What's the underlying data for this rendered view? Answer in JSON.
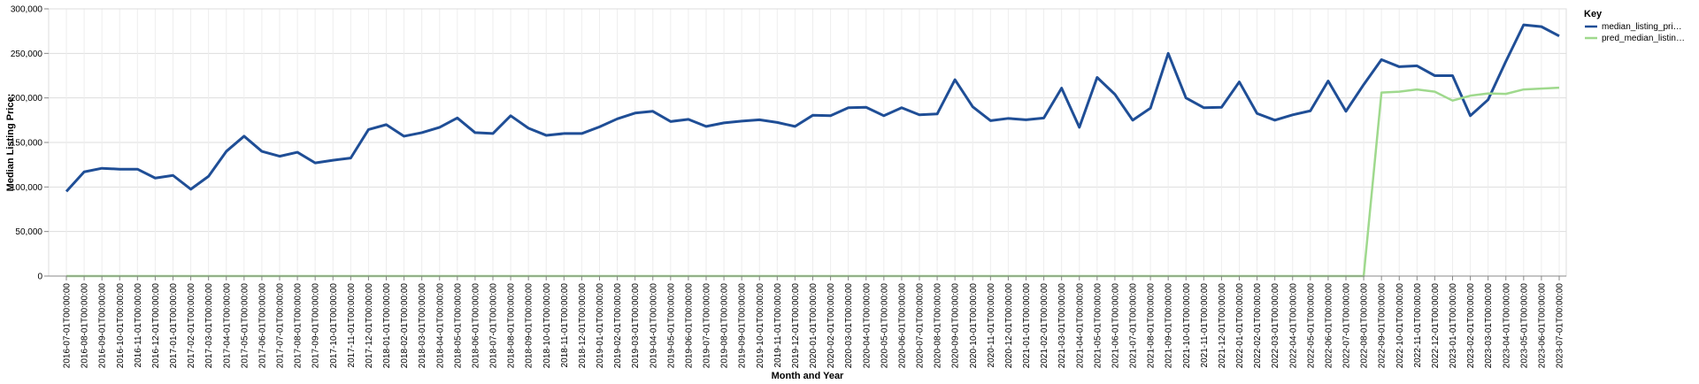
{
  "chart_data": {
    "type": "line",
    "xlabel": "Month and Year",
    "ylabel": "Median Listing Price:",
    "ylim": [
      0,
      300000
    ],
    "yticks": [
      "0",
      "50,000",
      "100,000",
      "150,000",
      "200,000",
      "250,000",
      "300,000"
    ],
    "grid": true,
    "legend": {
      "title": "Key",
      "placement": "right-top"
    },
    "x": [
      "2016-07-01T00:00:00",
      "2016-08-01T00:00:00",
      "2016-09-01T00:00:00",
      "2016-10-01T00:00:00",
      "2016-11-01T00:00:00",
      "2016-12-01T00:00:00",
      "2017-01-01T00:00:00",
      "2017-02-01T00:00:00",
      "2017-03-01T00:00:00",
      "2017-04-01T00:00:00",
      "2017-05-01T00:00:00",
      "2017-06-01T00:00:00",
      "2017-07-01T00:00:00",
      "2017-08-01T00:00:00",
      "2017-09-01T00:00:00",
      "2017-10-01T00:00:00",
      "2017-11-01T00:00:00",
      "2017-12-01T00:00:00",
      "2018-01-01T00:00:00",
      "2018-02-01T00:00:00",
      "2018-03-01T00:00:00",
      "2018-04-01T00:00:00",
      "2018-05-01T00:00:00",
      "2018-06-01T00:00:00",
      "2018-07-01T00:00:00",
      "2018-08-01T00:00:00",
      "2018-09-01T00:00:00",
      "2018-10-01T00:00:00",
      "2018-11-01T00:00:00",
      "2018-12-01T00:00:00",
      "2019-01-01T00:00:00",
      "2019-02-01T00:00:00",
      "2019-03-01T00:00:00",
      "2019-04-01T00:00:00",
      "2019-05-01T00:00:00",
      "2019-06-01T00:00:00",
      "2019-07-01T00:00:00",
      "2019-08-01T00:00:00",
      "2019-09-01T00:00:00",
      "2019-10-01T00:00:00",
      "2019-11-01T00:00:00",
      "2019-12-01T00:00:00",
      "2020-01-01T00:00:00",
      "2020-02-01T00:00:00",
      "2020-03-01T00:00:00",
      "2020-04-01T00:00:00",
      "2020-05-01T00:00:00",
      "2020-06-01T00:00:00",
      "2020-07-01T00:00:00",
      "2020-08-01T00:00:00",
      "2020-09-01T00:00:00",
      "2020-10-01T00:00:00",
      "2020-11-01T00:00:00",
      "2020-12-01T00:00:00",
      "2021-01-01T00:00:00",
      "2021-02-01T00:00:00",
      "2021-03-01T00:00:00",
      "2021-04-01T00:00:00",
      "2021-05-01T00:00:00",
      "2021-06-01T00:00:00",
      "2021-07-01T00:00:00",
      "2021-08-01T00:00:00",
      "2021-09-01T00:00:00",
      "2021-10-01T00:00:00",
      "2021-11-01T00:00:00",
      "2021-12-01T00:00:00",
      "2022-01-01T00:00:00",
      "2022-02-01T00:00:00",
      "2022-03-01T00:00:00",
      "2022-04-01T00:00:00",
      "2022-05-01T00:00:00",
      "2022-06-01T00:00:00",
      "2022-07-01T00:00:00",
      "2022-08-01T00:00:00",
      "2022-09-01T00:00:00",
      "2022-10-01T00:00:00",
      "2022-11-01T00:00:00",
      "2022-12-01T00:00:00",
      "2023-01-01T00:00:00",
      "2023-02-01T00:00:00",
      "2023-03-01T00:00:00",
      "2023-04-01T00:00:00",
      "2023-05-01T00:00:00",
      "2023-06-01T00:00:00",
      "2023-07-01T00:00:00"
    ],
    "series": [
      {
        "name": "median_listing_pri…",
        "color": "#1f4e96",
        "values": [
          95000,
          117000,
          121000,
          120000,
          120000,
          110000,
          113000,
          97500,
          112000,
          140000,
          157000,
          140000,
          134500,
          139000,
          127000,
          130000,
          132500,
          164500,
          170000,
          157000,
          161000,
          167000,
          177500,
          161000,
          160000,
          180000,
          166000,
          158000,
          160000,
          160000,
          167500,
          176500,
          183000,
          185000,
          173500,
          176000,
          168000,
          172000,
          174000,
          175500,
          172500,
          168000,
          180500,
          180000,
          189000,
          189500,
          180000,
          189000,
          181000,
          182000,
          220500,
          190000,
          174500,
          177000,
          175500,
          177500,
          211000,
          167000,
          223000,
          204000,
          175000,
          188500,
          250000,
          200000,
          189000,
          189500,
          218000,
          182500,
          175000,
          181000,
          185500,
          219000,
          185000,
          215000,
          243000,
          235000,
          236000,
          225000,
          225000,
          180000,
          198000,
          241000,
          282000,
          280000,
          269500
        ]
      },
      {
        "name": "pred_median_listin…",
        "color": "#9fd98d",
        "values": [
          0,
          0,
          0,
          0,
          0,
          0,
          0,
          0,
          0,
          0,
          0,
          0,
          0,
          0,
          0,
          0,
          0,
          0,
          0,
          0,
          0,
          0,
          0,
          0,
          0,
          0,
          0,
          0,
          0,
          0,
          0,
          0,
          0,
          0,
          0,
          0,
          0,
          0,
          0,
          0,
          0,
          0,
          0,
          0,
          0,
          0,
          0,
          0,
          0,
          0,
          0,
          0,
          0,
          0,
          0,
          0,
          0,
          0,
          0,
          0,
          0,
          0,
          0,
          0,
          0,
          0,
          0,
          0,
          0,
          0,
          0,
          0,
          0,
          0,
          206000,
          207000,
          209500,
          207000,
          197000,
          202500,
          205000,
          204500,
          209500,
          210500,
          211500
        ]
      }
    ]
  }
}
